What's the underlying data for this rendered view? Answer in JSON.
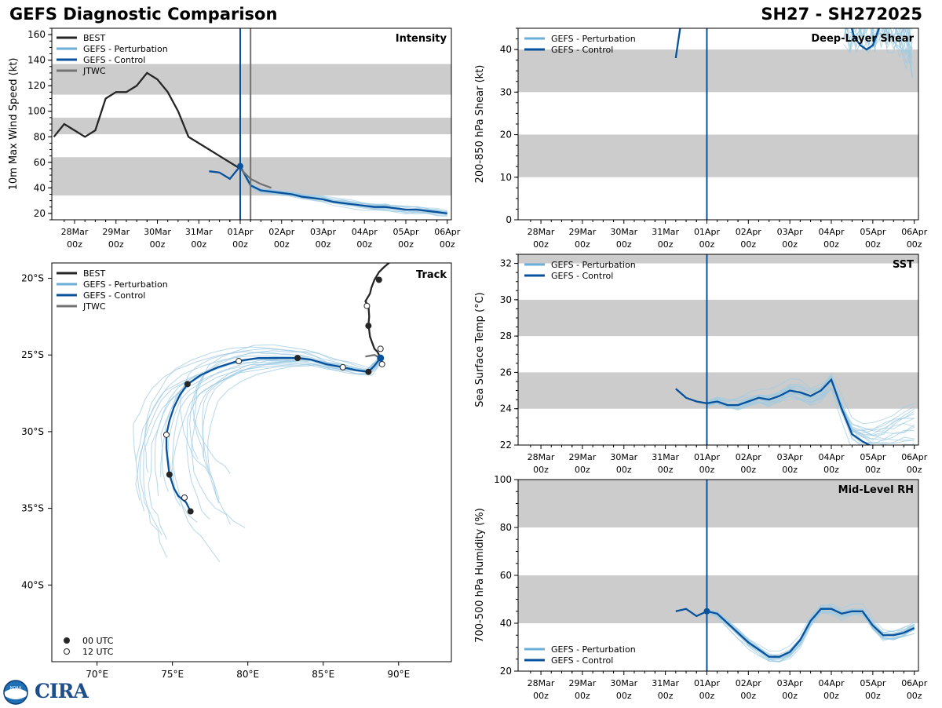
{
  "header": {
    "title": "GEFS Diagnostic Comparison",
    "storm_id": "SH27 - SH272025"
  },
  "logo": {
    "text": "CIRA",
    "badge": "NOAA"
  },
  "colors": {
    "best": "#262626",
    "perturbation": "#9ecae1",
    "perturbation_legend": "#6baed6",
    "control": "#08519c",
    "jtwc": "#737373",
    "band": "#cccccc"
  },
  "time_axis": {
    "ticks": [
      {
        "day": "28Mar",
        "hour": "00z",
        "t": -4
      },
      {
        "day": "29Mar",
        "hour": "00z",
        "t": -3
      },
      {
        "day": "30Mar",
        "hour": "00z",
        "t": -2
      },
      {
        "day": "31Mar",
        "hour": "00z",
        "t": -1
      },
      {
        "day": "01Apr",
        "hour": "00z",
        "t": 0
      },
      {
        "day": "02Apr",
        "hour": "00z",
        "t": 1
      },
      {
        "day": "03Apr",
        "hour": "00z",
        "t": 2
      },
      {
        "day": "04Apr",
        "hour": "00z",
        "t": 3
      },
      {
        "day": "05Apr",
        "hour": "00z",
        "t": 4
      },
      {
        "day": "06Apr",
        "hour": "00z",
        "t": 5
      }
    ],
    "xlim": [
      -4.55,
      5.1
    ],
    "init_time": 0
  },
  "chart_data": [
    {
      "id": "intensity",
      "type": "line",
      "title": "Intensity",
      "ylabel": "10m Max Wind Speed (kt)",
      "ylim": [
        15,
        165
      ],
      "yticks": [
        20,
        40,
        60,
        80,
        100,
        120,
        140,
        160
      ],
      "bands": [
        [
          34,
          64
        ],
        [
          82,
          95
        ],
        [
          113,
          137
        ]
      ],
      "legend": [
        "BEST",
        "GEFS - Perturbation",
        "GEFS - Control",
        "JTWC"
      ],
      "jtwc_time": 0.25,
      "series": [
        {
          "name": "BEST",
          "x": [
            -4.5,
            -4.25,
            -4,
            -3.75,
            -3.5,
            -3.25,
            -3,
            -2.75,
            -2.5,
            -2.25,
            -2,
            -1.75,
            -1.5,
            -1.25,
            -1,
            -0.75,
            -0.5,
            -0.25,
            0
          ],
          "y": [
            80,
            90,
            85,
            80,
            85,
            110,
            115,
            115,
            120,
            130,
            125,
            115,
            100,
            80,
            75,
            70,
            65,
            60,
            55
          ]
        },
        {
          "name": "GEFS - Control",
          "x": [
            -0.75,
            -0.5,
            -0.25,
            0,
            0.25,
            0.5,
            0.75,
            1,
            1.25,
            1.5,
            1.75,
            2,
            2.25,
            2.5,
            2.75,
            3,
            3.25,
            3.5,
            3.75,
            4,
            4.25,
            4.5,
            4.75,
            5
          ],
          "y": [
            53,
            52,
            47,
            57,
            42,
            38,
            37,
            36,
            35,
            33,
            32,
            31,
            29,
            28,
            27,
            26,
            25,
            25,
            24,
            23,
            23,
            22,
            21,
            20
          ]
        },
        {
          "name": "JTWC",
          "x": [
            0,
            0.25,
            0.5,
            0.75
          ],
          "y": [
            55,
            47,
            43,
            40
          ]
        }
      ],
      "control_init": {
        "x": 0,
        "y": 57
      }
    },
    {
      "id": "shear",
      "type": "line",
      "title": "Deep-Layer Shear",
      "ylabel": "200-850 hPa Shear (kt)",
      "ylim": [
        0,
        45
      ],
      "yticks": [
        0,
        10,
        20,
        30,
        40
      ],
      "bands": [
        [
          10,
          20
        ],
        [
          30,
          40
        ]
      ],
      "legend": [
        "GEFS - Perturbation",
        "GEFS - Control"
      ],
      "series": [
        {
          "name": "GEFS - Control",
          "segments": [
            {
              "x": [
                -0.75,
                -0.6
              ],
              "y": [
                38,
                48
              ]
            },
            {
              "x": [
                3.4,
                3.55,
                3.7,
                3.85,
                4.0,
                4.15
              ],
              "y": [
                48,
                43,
                41,
                40,
                41,
                45
              ]
            }
          ]
        }
      ]
    },
    {
      "id": "sst",
      "type": "line",
      "title": "SST",
      "ylabel": "Sea Surface Temp (°C)",
      "ylim": [
        22,
        32.5
      ],
      "yticks": [
        22,
        24,
        26,
        28,
        30,
        32
      ],
      "bands": [
        [
          24,
          26
        ],
        [
          28,
          30
        ],
        [
          32,
          33
        ]
      ],
      "legend": [
        "GEFS - Perturbation",
        "GEFS - Control"
      ],
      "series": [
        {
          "name": "GEFS - Control",
          "x": [
            -0.75,
            -0.5,
            -0.25,
            0,
            0.25,
            0.5,
            0.75,
            1,
            1.25,
            1.5,
            1.75,
            2,
            2.25,
            2.5,
            2.75,
            3,
            3.25,
            3.5,
            3.75,
            4
          ],
          "y": [
            25.1,
            24.6,
            24.4,
            24.3,
            24.4,
            24.2,
            24.2,
            24.4,
            24.6,
            24.5,
            24.7,
            25.0,
            24.9,
            24.7,
            25.0,
            25.6,
            24.0,
            22.6,
            22.2,
            21.9
          ]
        }
      ]
    },
    {
      "id": "rh",
      "type": "line",
      "title": "Mid-Level RH",
      "ylabel": "700-500 hPa Humidity (%)",
      "ylim": [
        20,
        100
      ],
      "yticks": [
        20,
        40,
        60,
        80,
        100
      ],
      "bands": [
        [
          40,
          60
        ],
        [
          80,
          100
        ]
      ],
      "legend": [
        "GEFS - Perturbation",
        "GEFS - Control"
      ],
      "series": [
        {
          "name": "GEFS - Control",
          "x": [
            -0.75,
            -0.5,
            -0.25,
            0,
            0.25,
            0.5,
            0.75,
            1,
            1.25,
            1.5,
            1.75,
            2,
            2.25,
            2.5,
            2.75,
            3,
            3.25,
            3.5,
            3.75,
            4,
            4.25,
            4.5,
            4.75,
            5
          ],
          "y": [
            45,
            46,
            43,
            45,
            44,
            40,
            36,
            32,
            29,
            26,
            26,
            28,
            33,
            41,
            46,
            46,
            44,
            45,
            45,
            39,
            35,
            35,
            36,
            38
          ]
        }
      ],
      "control_init": {
        "x": 0,
        "y": 45
      }
    },
    {
      "id": "track",
      "type": "line",
      "title": "Track",
      "xlim": [
        67,
        93.5
      ],
      "ylim": [
        -45,
        -19
      ],
      "xticks": [
        {
          "v": 70,
          "label": "70°E"
        },
        {
          "v": 75,
          "label": "75°E"
        },
        {
          "v": 80,
          "label": "80°E"
        },
        {
          "v": 85,
          "label": "85°E"
        },
        {
          "v": 90,
          "label": "90°E"
        }
      ],
      "yticks": [
        {
          "v": -20,
          "label": "20°S"
        },
        {
          "v": -25,
          "label": "25°S"
        },
        {
          "v": -30,
          "label": "30°S"
        },
        {
          "v": -35,
          "label": "35°S"
        },
        {
          "v": -40,
          "label": "40°S"
        }
      ],
      "legend": [
        "BEST",
        "GEFS - Perturbation",
        "GEFS - Control",
        "JTWC"
      ],
      "marker_legend": [
        "00 UTC",
        "12 UTC"
      ],
      "best": {
        "lon": [
          88.8,
          88.6,
          88.4,
          88.1,
          88.0,
          88.05,
          88.0,
          87.8,
          88.1,
          88.2,
          88.4,
          88.7,
          89.0,
          89.6
        ],
        "lat": [
          -25.2,
          -24.8,
          -24.6,
          -23.8,
          -23.0,
          -22.5,
          -21.8,
          -21.5,
          -21.0,
          -20.6,
          -20.1,
          -19.6,
          -19.3,
          -18.8
        ]
      },
      "best_markers": [
        {
          "lon": 88.8,
          "lat": -24.6,
          "type": "12"
        },
        {
          "lon": 88.0,
          "lat": -23.1,
          "type": "00"
        },
        {
          "lon": 87.9,
          "lat": -21.8,
          "type": "12"
        },
        {
          "lon": 88.7,
          "lat": -20.1,
          "type": "00"
        }
      ],
      "control": {
        "lon": [
          88.8,
          88.4,
          88.0,
          87.2,
          86.3,
          85.2,
          84.2,
          83.3,
          82.0,
          80.7,
          79.3,
          78.0,
          76.9,
          76.0,
          75.5,
          75.1,
          74.8,
          74.6,
          74.6,
          74.7,
          74.8,
          75.1,
          75.4,
          75.9,
          76.2
        ],
        "lat": [
          -25.2,
          -25.7,
          -26.1,
          -26.0,
          -25.8,
          -25.6,
          -25.3,
          -25.2,
          -25.2,
          -25.2,
          -25.4,
          -25.8,
          -26.3,
          -26.9,
          -27.6,
          -28.4,
          -29.3,
          -30.2,
          -31.1,
          -32.0,
          -32.8,
          -33.7,
          -34.2,
          -34.6,
          -35.2
        ]
      },
      "control_markers": [
        {
          "lon": 88.9,
          "lat": -25.6,
          "type": "12"
        },
        {
          "lon": 88.0,
          "lat": -26.1,
          "type": "00"
        },
        {
          "lon": 86.3,
          "lat": -25.8,
          "type": "12"
        },
        {
          "lon": 83.3,
          "lat": -25.2,
          "type": "00"
        },
        {
          "lon": 79.4,
          "lat": -25.4,
          "type": "12"
        },
        {
          "lon": 76.0,
          "lat": -26.9,
          "type": "00"
        },
        {
          "lon": 74.6,
          "lat": -30.2,
          "type": "12"
        },
        {
          "lon": 74.8,
          "lat": -32.8,
          "type": "00"
        },
        {
          "lon": 75.8,
          "lat": -34.3,
          "type": "12"
        },
        {
          "lon": 76.2,
          "lat": -35.2,
          "type": "00"
        }
      ],
      "jtwc": {
        "lon": [
          88.8,
          88.4,
          87.8
        ],
        "lat": [
          -25.2,
          -25.0,
          -25.1
        ]
      },
      "init_point": {
        "lon": 88.8,
        "lat": -25.2
      }
    }
  ]
}
